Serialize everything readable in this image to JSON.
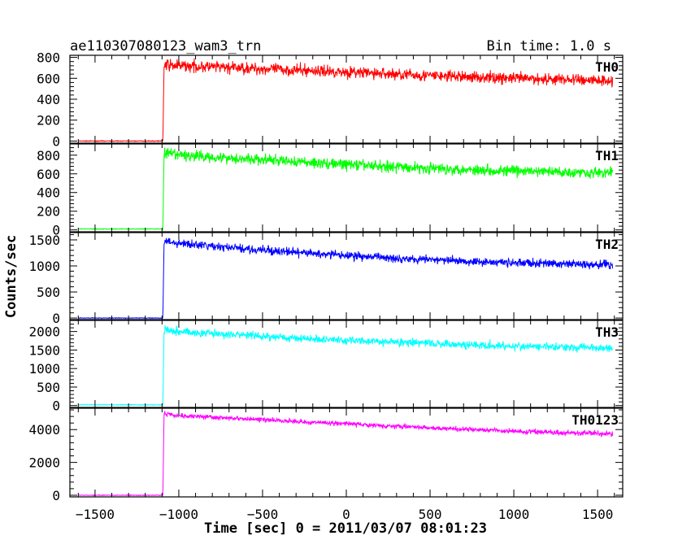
{
  "chart_data": {
    "type": "line",
    "title": "ae110307080123_wam3_trn",
    "subtitle": "Bin time: 1.0 s",
    "xlabel": "Time [sec] 0 = 2011/03/07 08:01:23",
    "ylabel": "Counts/sec",
    "xlim": [
      -1650,
      1650
    ],
    "x_ticks": [
      -1500,
      -1000,
      -500,
      0,
      500,
      1000,
      1500
    ],
    "x_tick_labels": [
      "−1500",
      "−1000",
      "−500",
      "0",
      "500",
      "1000",
      "1500"
    ],
    "onset_time": -1090,
    "data_end_time": 1590,
    "grid": false,
    "legend": "none",
    "series": [
      {
        "name": "TH0",
        "color": "#ff0000",
        "ylim": [
          -20,
          820
        ],
        "y_ticks": [
          0,
          200,
          400,
          600,
          800
        ],
        "y_tick_labels": [
          "0",
          "200",
          "400",
          "600",
          "800"
        ],
        "x": [
          -1600,
          -1095,
          -1088,
          -1000,
          -500,
          0,
          500,
          1000,
          1590
        ],
        "values": [
          0,
          0,
          725,
          720,
          690,
          660,
          625,
          600,
          580
        ],
        "noise": 28
      },
      {
        "name": "TH1",
        "color": "#00ff00",
        "ylim": [
          -20,
          920
        ],
        "y_ticks": [
          0,
          200,
          400,
          600,
          800
        ],
        "y_tick_labels": [
          "0",
          "200",
          "400",
          "600",
          "800"
        ],
        "x": [
          -1600,
          -1095,
          -1088,
          -1000,
          -500,
          0,
          500,
          1000,
          1590
        ],
        "values": [
          10,
          10,
          820,
          800,
          750,
          700,
          660,
          630,
          610
        ],
        "noise": 30
      },
      {
        "name": "TH2",
        "color": "#0000ff",
        "ylim": [
          -30,
          1640
        ],
        "y_ticks": [
          0,
          500,
          1000,
          1500
        ],
        "y_tick_labels": [
          "0",
          "500",
          "1000",
          "1500"
        ],
        "x": [
          -1600,
          -1095,
          -1088,
          -1000,
          -500,
          0,
          500,
          1000,
          1590
        ],
        "values": [
          0,
          0,
          1480,
          1430,
          1300,
          1200,
          1120,
          1060,
          1020
        ],
        "noise": 40
      },
      {
        "name": "TH3",
        "color": "#00ffff",
        "ylim": [
          -50,
          2300
        ],
        "y_ticks": [
          0,
          500,
          1000,
          1500,
          2000
        ],
        "y_tick_labels": [
          "0",
          "500",
          "1000",
          "1500",
          "2000"
        ],
        "x": [
          -1600,
          -1095,
          -1088,
          -1000,
          -500,
          0,
          500,
          1000,
          1590
        ],
        "values": [
          20,
          20,
          2080,
          2000,
          1870,
          1760,
          1680,
          1600,
          1560
        ],
        "noise": 55
      },
      {
        "name": "TH0123",
        "color": "#ff00ff",
        "ylim": [
          -100,
          5300
        ],
        "y_ticks": [
          0,
          2000,
          4000
        ],
        "y_tick_labels": [
          "0",
          "2000",
          "4000"
        ],
        "x": [
          -1600,
          -1095,
          -1088,
          -1000,
          -500,
          0,
          500,
          1000,
          1590
        ],
        "values": [
          0,
          0,
          5000,
          4850,
          4600,
          4350,
          4100,
          3900,
          3750
        ],
        "noise": 70
      }
    ]
  }
}
